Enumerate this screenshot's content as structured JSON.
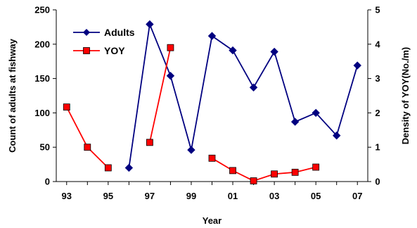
{
  "chart_data": {
    "type": "line",
    "x_tick_labels": [
      "93",
      "95",
      "97",
      "99",
      "01",
      "03",
      "05",
      "07"
    ],
    "xlabel": "Year",
    "ylabel_left": "Count of adults at fishway",
    "ylabel_right": "Density of YOY(No./m)",
    "ylim_left": [
      0,
      250
    ],
    "yticks_left": [
      "0",
      "50",
      "100",
      "150",
      "200",
      "250"
    ],
    "ylim_right": [
      0,
      5
    ],
    "yticks_right": [
      "0",
      "1",
      "2",
      "3",
      "4",
      "5"
    ],
    "grid": false,
    "legend_placement": "top-left",
    "series": [
      {
        "name": "Adults",
        "axis": "left",
        "color": "#000080",
        "marker": "diamond",
        "segments": [
          [
            [
              1996,
              20
            ],
            [
              1997,
              229
            ],
            [
              1998,
              154
            ],
            [
              1999,
              46
            ],
            [
              2000,
              212
            ],
            [
              2001,
              191
            ],
            [
              2002,
              137
            ],
            [
              2003,
              189
            ],
            [
              2004,
              87
            ],
            [
              2005,
              100
            ],
            [
              2006,
              67
            ],
            [
              2007,
              169
            ]
          ]
        ]
      },
      {
        "name": "YOY",
        "axis": "right",
        "color": "#ff0000",
        "marker": "square",
        "segments": [
          [
            [
              1993,
              2.17
            ],
            [
              1994,
              1.0
            ],
            [
              1995,
              0.4
            ]
          ],
          [
            [
              1997,
              1.14
            ],
            [
              1998,
              3.9
            ]
          ],
          [
            [
              2000,
              0.68
            ],
            [
              2001,
              0.32
            ],
            [
              2002,
              0.02
            ],
            [
              2003,
              0.22
            ],
            [
              2004,
              0.27
            ],
            [
              2005,
              0.42
            ]
          ]
        ]
      }
    ]
  }
}
